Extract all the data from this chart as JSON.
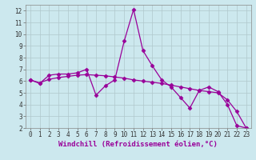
{
  "xlabel": "Windchill (Refroidissement éolien,°C)",
  "ylabel": "",
  "background_color": "#cce8ee",
  "line_color": "#990099",
  "xlim": [
    -0.5,
    23.5
  ],
  "ylim": [
    2,
    12.5
  ],
  "yticks": [
    2,
    3,
    4,
    5,
    6,
    7,
    8,
    9,
    10,
    11,
    12
  ],
  "xticks": [
    0,
    1,
    2,
    3,
    4,
    5,
    6,
    7,
    8,
    9,
    10,
    11,
    12,
    13,
    14,
    15,
    16,
    17,
    18,
    19,
    20,
    21,
    22,
    23
  ],
  "line1_x": [
    0,
    1,
    2,
    3,
    4,
    5,
    6,
    7,
    8,
    9,
    10,
    11,
    12,
    13,
    14,
    15,
    16,
    17,
    18,
    19,
    20,
    21,
    22,
    23
  ],
  "line1_y": [
    6.1,
    5.8,
    6.5,
    6.6,
    6.6,
    6.7,
    7.0,
    4.8,
    5.6,
    6.1,
    9.4,
    12.1,
    8.6,
    7.3,
    6.1,
    5.5,
    4.6,
    3.7,
    5.2,
    5.5,
    5.1,
    4.0,
    2.2,
    2.0
  ],
  "line2_x": [
    0,
    1,
    2,
    3,
    4,
    5,
    6,
    7,
    8,
    9,
    10,
    11,
    12,
    13,
    14,
    15,
    16,
    17,
    18,
    19,
    20,
    21,
    22,
    23
  ],
  "line2_y": [
    6.1,
    5.85,
    6.15,
    6.3,
    6.4,
    6.5,
    6.55,
    6.5,
    6.45,
    6.35,
    6.25,
    6.1,
    6.0,
    5.9,
    5.8,
    5.65,
    5.5,
    5.35,
    5.2,
    5.1,
    5.0,
    4.4,
    3.4,
    2.0
  ],
  "marker": "D",
  "markersize": 2.5,
  "linewidth": 0.9,
  "xlabel_fontsize": 6.5,
  "tick_fontsize": 5.5,
  "grid_color": "#b0c8cc"
}
